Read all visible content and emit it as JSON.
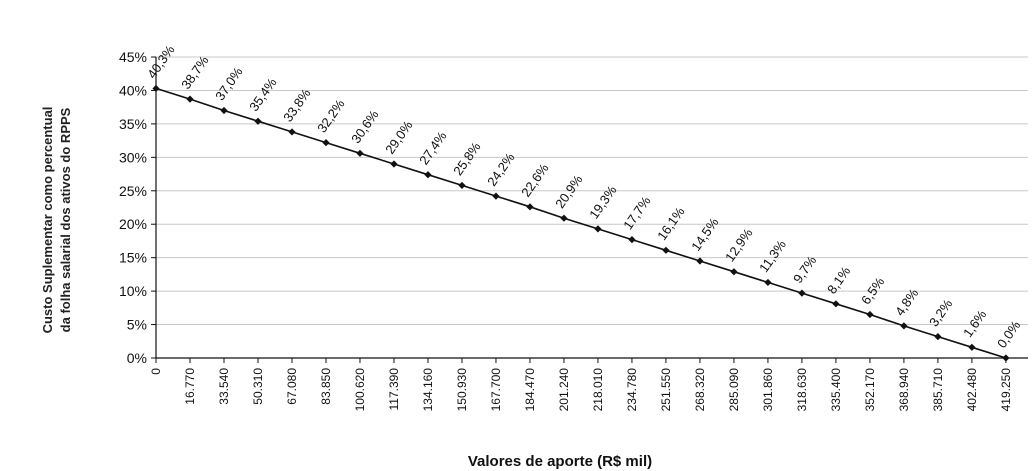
{
  "chart_data": {
    "type": "line",
    "xlabel": "Valores de aporte (R$ mil)",
    "ylabel_lines": [
      "Custo Suplementar como percentual",
      "da folha salarial dos ativos do RPPS"
    ],
    "ylim": [
      0,
      45
    ],
    "yticks": [
      "0%",
      "5%",
      "10%",
      "15%",
      "20%",
      "25%",
      "30%",
      "35%",
      "40%",
      "45%"
    ],
    "grid": true,
    "legend": "none",
    "colors": {
      "line": "#111111",
      "grid": "#c8c8c8",
      "marker": "#111111"
    },
    "categories": [
      "0",
      "16.770",
      "33.540",
      "50.310",
      "67.080",
      "83.850",
      "100.620",
      "117.390",
      "134.160",
      "150.930",
      "167.700",
      "184.470",
      "201.240",
      "218.010",
      "234.780",
      "251.550",
      "268.320",
      "285.090",
      "301.860",
      "318.630",
      "335.400",
      "352.170",
      "368.940",
      "385.710",
      "402.480",
      "419.250"
    ],
    "values": [
      40.3,
      38.7,
      37.0,
      35.4,
      33.8,
      32.2,
      30.6,
      29.0,
      27.4,
      25.8,
      24.2,
      22.6,
      20.9,
      19.3,
      17.7,
      16.1,
      14.5,
      12.9,
      11.3,
      9.7,
      8.1,
      6.5,
      4.8,
      3.2,
      1.6,
      0.0
    ],
    "data_labels": [
      "40,3%",
      "38,7%",
      "37,0%",
      "35,4%",
      "33,8%",
      "32,2%",
      "30,6%",
      "29,0%",
      "27,4%",
      "25,8%",
      "24,2%",
      "22,6%",
      "20,9%",
      "19,3%",
      "17,7%",
      "16,1%",
      "14,5%",
      "12,9%",
      "11,3%",
      "9,7%",
      "8,1%",
      "6,5%",
      "4,8%",
      "3,2%",
      "1,6%",
      "0,0%"
    ]
  }
}
